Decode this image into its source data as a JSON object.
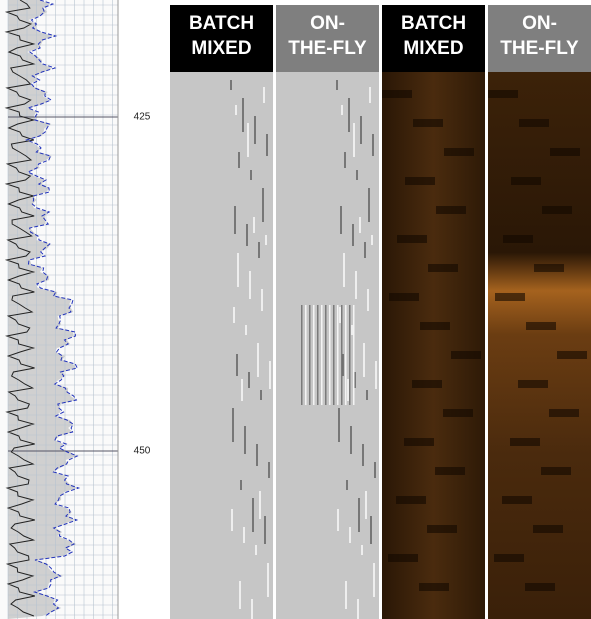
{
  "depth_labels": [
    425,
    450
  ],
  "panels": [
    {
      "header": [
        "BATCH",
        "MIXED"
      ]
    },
    {
      "header": [
        "ON-",
        "THE-FLY"
      ]
    },
    {
      "header": [
        "BATCH",
        "MIXED"
      ]
    },
    {
      "header": [
        "ON-",
        "THE-FLY"
      ]
    }
  ]
}
